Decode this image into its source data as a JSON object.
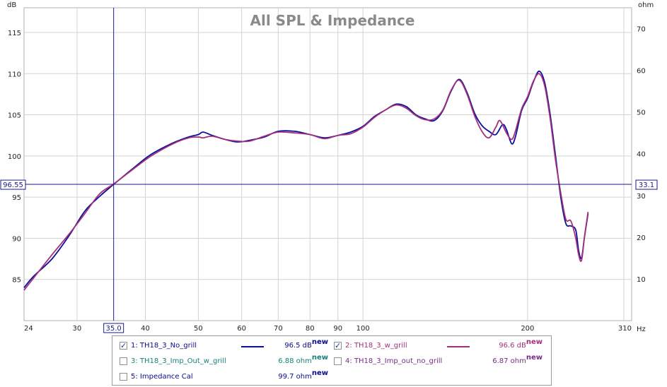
{
  "chart_data": {
    "type": "line",
    "title": "All SPL & Impedance",
    "x_scale": "log",
    "xlim": [
      24,
      310
    ],
    "x_unit": "Hz",
    "x_ticks": [
      24,
      30,
      40,
      50,
      60,
      70,
      80,
      90,
      100,
      200,
      310
    ],
    "ylabel_left": "dB",
    "ylim_left": [
      80,
      118
    ],
    "y_ticks_left": [
      85,
      90,
      95,
      100,
      105,
      110,
      115
    ],
    "ylabel_right": "ohm",
    "ylim_right": [
      0,
      75
    ],
    "y_ticks_right": [
      10,
      20,
      30,
      40,
      50,
      60,
      70
    ],
    "grid": true,
    "cursor": {
      "x_label": "35.0",
      "y_left_label": "96.55",
      "y_right_label": "33.1",
      "x": 35.0,
      "y": 96.55
    },
    "series": [
      {
        "name": "TH18_3_No_grill",
        "color": "#0b0f9c",
        "points": [
          [
            24,
            84.0
          ],
          [
            25,
            85.4
          ],
          [
            27,
            87.5
          ],
          [
            29,
            90.3
          ],
          [
            31,
            93.3
          ],
          [
            33,
            95.1
          ],
          [
            35,
            96.55
          ],
          [
            38,
            98.5
          ],
          [
            41,
            100.2
          ],
          [
            45,
            101.6
          ],
          [
            48,
            102.3
          ],
          [
            50,
            102.6
          ],
          [
            51,
            102.9
          ],
          [
            53,
            102.5
          ],
          [
            56,
            102.0
          ],
          [
            59,
            101.7
          ],
          [
            62,
            101.9
          ],
          [
            66,
            102.3
          ],
          [
            70,
            103.0
          ],
          [
            75,
            103.0
          ],
          [
            80,
            102.6
          ],
          [
            85,
            102.2
          ],
          [
            90,
            102.5
          ],
          [
            95,
            102.9
          ],
          [
            100,
            103.6
          ],
          [
            105,
            104.8
          ],
          [
            110,
            105.6
          ],
          [
            115,
            106.3
          ],
          [
            120,
            106.0
          ],
          [
            125,
            105.0
          ],
          [
            130,
            104.5
          ],
          [
            135,
            104.3
          ],
          [
            140,
            105.5
          ],
          [
            145,
            107.9
          ],
          [
            150,
            109.3
          ],
          [
            155,
            107.7
          ],
          [
            160,
            105.2
          ],
          [
            165,
            103.7
          ],
          [
            170,
            103.0
          ],
          [
            175,
            102.6
          ],
          [
            180,
            103.8
          ],
          [
            183,
            103.2
          ],
          [
            187,
            101.5
          ],
          [
            190,
            102.3
          ],
          [
            195,
            105.5
          ],
          [
            200,
            107.0
          ],
          [
            205,
            109.0
          ],
          [
            210,
            110.3
          ],
          [
            215,
            108.9
          ],
          [
            220,
            105.0
          ],
          [
            225,
            100.0
          ],
          [
            230,
            95.0
          ],
          [
            235,
            91.8
          ],
          [
            240,
            91.5
          ],
          [
            245,
            91.0
          ],
          [
            248,
            88.5
          ],
          [
            251,
            87.6
          ],
          [
            254,
            90.0
          ],
          [
            258,
            93.0
          ]
        ]
      },
      {
        "name": "TH18_3_w_grill",
        "color": "#a3307c",
        "points": [
          [
            24,
            83.7
          ],
          [
            25,
            85.2
          ],
          [
            27,
            88.0
          ],
          [
            29,
            90.5
          ],
          [
            31,
            93.0
          ],
          [
            33,
            95.4
          ],
          [
            35,
            96.6
          ],
          [
            38,
            98.4
          ],
          [
            41,
            100.0
          ],
          [
            45,
            101.5
          ],
          [
            48,
            102.2
          ],
          [
            50,
            102.3
          ],
          [
            51,
            102.2
          ],
          [
            53,
            102.4
          ],
          [
            56,
            102.0
          ],
          [
            59,
            101.8
          ],
          [
            62,
            101.8
          ],
          [
            66,
            102.4
          ],
          [
            70,
            102.9
          ],
          [
            75,
            102.8
          ],
          [
            80,
            102.6
          ],
          [
            85,
            102.1
          ],
          [
            90,
            102.5
          ],
          [
            95,
            102.7
          ],
          [
            100,
            103.5
          ],
          [
            105,
            104.7
          ],
          [
            110,
            105.6
          ],
          [
            115,
            106.2
          ],
          [
            120,
            105.8
          ],
          [
            125,
            104.9
          ],
          [
            130,
            104.4
          ],
          [
            135,
            104.5
          ],
          [
            140,
            105.6
          ],
          [
            145,
            108.0
          ],
          [
            150,
            109.2
          ],
          [
            155,
            107.5
          ],
          [
            160,
            104.9
          ],
          [
            165,
            103.0
          ],
          [
            170,
            102.2
          ],
          [
            175,
            103.5
          ],
          [
            178,
            104.3
          ],
          [
            183,
            102.8
          ],
          [
            187,
            102.0
          ],
          [
            190,
            103.0
          ],
          [
            195,
            105.7
          ],
          [
            200,
            107.2
          ],
          [
            205,
            109.1
          ],
          [
            210,
            110.0
          ],
          [
            215,
            108.5
          ],
          [
            220,
            104.5
          ],
          [
            225,
            99.5
          ],
          [
            230,
            95.5
          ],
          [
            235,
            92.3
          ],
          [
            240,
            92.1
          ],
          [
            245,
            90.0
          ],
          [
            248,
            88.0
          ],
          [
            251,
            87.3
          ],
          [
            254,
            90.0
          ],
          [
            258,
            93.2
          ]
        ]
      }
    ],
    "legend": [
      {
        "index": "1",
        "name": "TH18_3_No_grill",
        "checked": true,
        "value": "96.5 dB",
        "superscript": "new",
        "color": "#0b0f9c",
        "text_color": "#0a0a8c",
        "show_swatch": true
      },
      {
        "index": "2",
        "name": "TH18_3_w_grill",
        "checked": true,
        "value": "96.6 dB",
        "superscript": "new",
        "color": "#a3307c",
        "text_color": "#a3307c",
        "show_swatch": true
      },
      {
        "index": "3",
        "name": "TH18_3_Imp_Out_w_grill",
        "checked": false,
        "value": "6.88 ohm",
        "superscript": "new",
        "color": "#18807c",
        "text_color": "#18807c",
        "show_swatch": false
      },
      {
        "index": "4",
        "name": "TH18_3_Imp_out_no_grill",
        "checked": false,
        "value": "6.87 ohm",
        "superscript": "new",
        "color": "#7a2a8a",
        "text_color": "#7a2a8a",
        "show_swatch": false
      },
      {
        "index": "5",
        "name": "Impedance Cal",
        "checked": false,
        "value": "99.7 ohm",
        "superscript": "new",
        "color": "#0a0a8c",
        "text_color": "#0a0a8c",
        "show_swatch": false
      }
    ]
  }
}
